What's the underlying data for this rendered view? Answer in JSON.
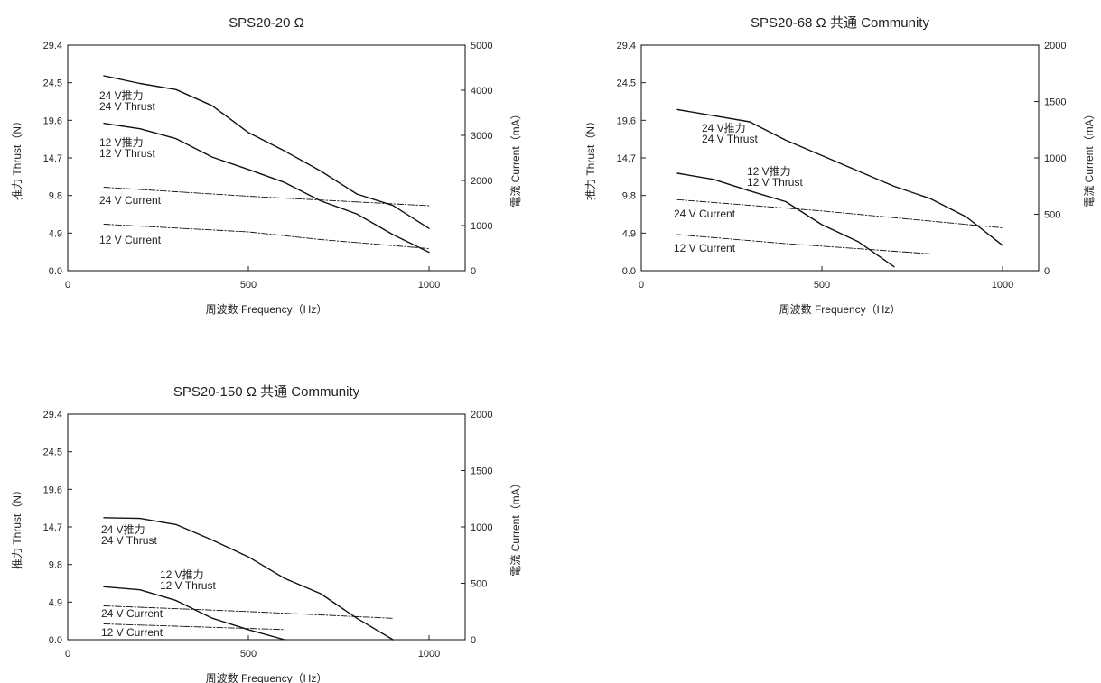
{
  "chart_data": [
    {
      "type": "line",
      "title": "SPS20-20 Ω",
      "xlabel": "周波数  Frequency（Hz）",
      "ylabel": "推力 Thrust（N）",
      "y2label": "電流  Current（mA）",
      "xlim": [
        0,
        1100
      ],
      "ylim": [
        0,
        29.4
      ],
      "y2lim": [
        0,
        5000
      ],
      "xticks": [
        "0",
        "500",
        "1000"
      ],
      "yticks": [
        "0.0",
        "4.9",
        "9.8",
        "14.7",
        "19.6",
        "24.5",
        "29.4"
      ],
      "y2ticks": [
        "0",
        "1000",
        "2000",
        "3000",
        "4000",
        "5000"
      ],
      "series": [
        {
          "name": "24 V推力",
          "name2": "24 V Thrust",
          "axis": "left",
          "style": "solid",
          "x": [
            100,
            200,
            300,
            400,
            500,
            600,
            700,
            800,
            900,
            1000
          ],
          "y": [
            25.4,
            24.4,
            23.6,
            21.5,
            18.0,
            15.6,
            13.0,
            10.0,
            8.5,
            5.5
          ]
        },
        {
          "name": "12 V推力",
          "name2": "12 V Thrust",
          "axis": "left",
          "style": "solid",
          "x": [
            100,
            200,
            300,
            400,
            500,
            600,
            700,
            800,
            900,
            1000
          ],
          "y": [
            19.2,
            18.5,
            17.2,
            14.8,
            13.2,
            11.5,
            9.1,
            7.4,
            4.7,
            2.4
          ]
        },
        {
          "name": "24 V  Current",
          "axis": "right",
          "style": "dashdot",
          "x": [
            100,
            500,
            1000
          ],
          "y": [
            1850,
            1650,
            1440
          ]
        },
        {
          "name": "12 V  Current",
          "axis": "right",
          "style": "dashdot",
          "x": [
            100,
            500,
            700,
            1000
          ],
          "y": [
            1030,
            860,
            690,
            490
          ]
        }
      ]
    },
    {
      "type": "line",
      "title": "SPS20-68 Ω 共通 Community",
      "xlabel": "周波数  Frequency（Hz）",
      "ylabel": "推力 Thrust（N）",
      "y2label": "電流  Current（mA）",
      "xlim": [
        0,
        1100
      ],
      "ylim": [
        0,
        29.4
      ],
      "y2lim": [
        0,
        2000
      ],
      "xticks": [
        "0",
        "500",
        "1000"
      ],
      "yticks": [
        "0.0",
        "4.9",
        "9.8",
        "14.7",
        "19.6",
        "24.5",
        "29.4"
      ],
      "y2ticks": [
        "0",
        "500",
        "1000",
        "1500",
        "2000"
      ],
      "series": [
        {
          "name": "24 V推力",
          "name2": "24 V Thrust",
          "axis": "left",
          "style": "solid",
          "x": [
            100,
            200,
            300,
            400,
            500,
            600,
            700,
            800,
            900,
            1000
          ],
          "y": [
            21.0,
            20.2,
            19.4,
            17.0,
            15.0,
            13.0,
            11.0,
            9.4,
            7.0,
            3.3
          ]
        },
        {
          "name": "12 V推力",
          "name2": "12 V Thrust",
          "axis": "left",
          "style": "solid",
          "x": [
            100,
            200,
            300,
            400,
            500,
            600,
            700
          ],
          "y": [
            12.7,
            11.9,
            10.4,
            9.0,
            6.0,
            3.8,
            0.5
          ]
        },
        {
          "name": "24 V  Current",
          "axis": "right",
          "style": "dashdot",
          "x": [
            100,
            500,
            1000
          ],
          "y": [
            630,
            530,
            380
          ]
        },
        {
          "name": "12 V  Current",
          "axis": "right",
          "style": "dashdot",
          "x": [
            100,
            400,
            800
          ],
          "y": [
            320,
            240,
            150
          ]
        }
      ]
    },
    {
      "type": "line",
      "title": "SPS20-150 Ω 共通 Community",
      "xlabel": "周波数  Frequency（Hz）",
      "ylabel": "推力 Thrust（N）",
      "y2label": "電流  Current（mA）",
      "xlim": [
        0,
        1100
      ],
      "ylim": [
        0,
        29.4
      ],
      "y2lim": [
        0,
        2000
      ],
      "xticks": [
        "0",
        "500",
        "1000"
      ],
      "yticks": [
        "0.0",
        "4.9",
        "9.8",
        "14.7",
        "19.6",
        "24.5",
        "29.4"
      ],
      "y2ticks": [
        "0",
        "500",
        "1000",
        "1500",
        "2000"
      ],
      "series": [
        {
          "name": "24 V推力",
          "name2": "24 V Thrust",
          "axis": "left",
          "style": "solid",
          "x": [
            100,
            200,
            300,
            400,
            500,
            600,
            700,
            800,
            900
          ],
          "y": [
            15.9,
            15.8,
            15.0,
            13.0,
            10.8,
            8.0,
            6.0,
            2.8,
            0.0
          ]
        },
        {
          "name": "12 V推力",
          "name2": "12 V Thrust",
          "axis": "left",
          "style": "solid",
          "x": [
            100,
            200,
            300,
            400,
            500,
            600
          ],
          "y": [
            6.9,
            6.5,
            5.1,
            2.8,
            1.3,
            0.0
          ]
        },
        {
          "name": "24 V  Current",
          "axis": "right",
          "style": "dashdot",
          "x": [
            100,
            500,
            900
          ],
          "y": [
            300,
            250,
            190
          ]
        },
        {
          "name": "12 V  Current",
          "axis": "right",
          "style": "dashdot",
          "x": [
            100,
            400,
            600
          ],
          "y": [
            140,
            110,
            90
          ]
        }
      ]
    }
  ]
}
